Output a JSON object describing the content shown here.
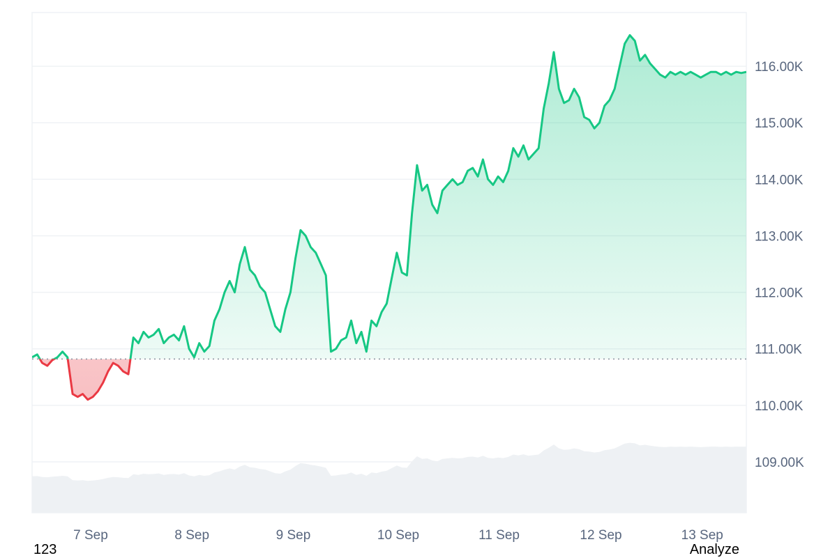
{
  "footer": {
    "left_label": "123",
    "right_label": "Analyze"
  },
  "colors": {
    "up": "#16c784",
    "down": "#ea3943",
    "grid": "#eff2f5",
    "volume": "#eef1f4"
  },
  "chart_data": {
    "type": "area",
    "title": "",
    "xlabel": "",
    "ylabel": "",
    "ylim": [
      108100,
      116950
    ],
    "yticks": [
      109000,
      110000,
      111000,
      112000,
      113000,
      114000,
      115000,
      116000
    ],
    "ytick_labels": [
      "109.00K",
      "110.00K",
      "111.00K",
      "112.00K",
      "113.00K",
      "114.00K",
      "115.00K",
      "116.00K"
    ],
    "xlim": [
      0,
      7.05
    ],
    "xticks": [
      0.6,
      1.6,
      2.6,
      3.6,
      4.6,
      5.6,
      6.6
    ],
    "xtick_labels": [
      "7 Sep",
      "8 Sep",
      "9 Sep",
      "10 Sep",
      "11 Sep",
      "12 Sep",
      "13 Sep"
    ],
    "baseline": 110820,
    "grid": true,
    "legend": "none",
    "series": [
      {
        "x": [
          0,
          0.05,
          0.1,
          0.15,
          0.2,
          0.25,
          0.3,
          0.35,
          0.4,
          0.45,
          0.5,
          0.55,
          0.6,
          0.65,
          0.7,
          0.75,
          0.8,
          0.85,
          0.9,
          0.95,
          1.0,
          1.05,
          1.1,
          1.15,
          1.2,
          1.25,
          1.3,
          1.35,
          1.4,
          1.45,
          1.5,
          1.55,
          1.6,
          1.65,
          1.7,
          1.75,
          1.8,
          1.85,
          1.9,
          1.95,
          2.0,
          2.05,
          2.1,
          2.15,
          2.2,
          2.25,
          2.3,
          2.35,
          2.4,
          2.45,
          2.5,
          2.55,
          2.6,
          2.65,
          2.7,
          2.75,
          2.8,
          2.85,
          2.9,
          2.95,
          3.0,
          3.05,
          3.1,
          3.15,
          3.2,
          3.25,
          3.3,
          3.35,
          3.4,
          3.45,
          3.5,
          3.55,
          3.6,
          3.65,
          3.7,
          3.75,
          3.8,
          3.85,
          3.9,
          3.95,
          4.0,
          4.05,
          4.1,
          4.15,
          4.2,
          4.25,
          4.3,
          4.35,
          4.4,
          4.45,
          4.5,
          4.55,
          4.6,
          4.65,
          4.7,
          4.75,
          4.8,
          4.85,
          4.9,
          4.95,
          5.0,
          5.05,
          5.1,
          5.15,
          5.2,
          5.25,
          5.3,
          5.35,
          5.4,
          5.45,
          5.5,
          5.55,
          5.6,
          5.65,
          5.7,
          5.75,
          5.8,
          5.85,
          5.9,
          5.95,
          6.0,
          6.05,
          6.1,
          6.15,
          6.2,
          6.25,
          6.3,
          6.35,
          6.4,
          6.45,
          6.5,
          6.55,
          6.6,
          6.65,
          6.7,
          6.75,
          6.8,
          6.85,
          6.9,
          6.95,
          7.0,
          7.05
        ],
        "values": [
          110850,
          110900,
          110750,
          110700,
          110800,
          110850,
          110950,
          110850,
          110200,
          110150,
          110200,
          110100,
          110150,
          110250,
          110400,
          110600,
          110750,
          110700,
          110600,
          110550,
          111200,
          111100,
          111300,
          111200,
          111250,
          111350,
          111100,
          111200,
          111250,
          111150,
          111400,
          111000,
          110850,
          111100,
          110950,
          111050,
          111500,
          111700,
          112000,
          112200,
          112000,
          112500,
          112800,
          112400,
          112300,
          112100,
          112000,
          111700,
          111400,
          111300,
          111700,
          112000,
          112600,
          113100,
          113000,
          112800,
          112700,
          112500,
          112300,
          110950,
          111000,
          111150,
          111200,
          111500,
          111100,
          111300,
          110950,
          111500,
          111400,
          111650,
          111800,
          112250,
          112700,
          112350,
          112300,
          113400,
          114250,
          113800,
          113900,
          113550,
          113400,
          113800,
          113900,
          114000,
          113900,
          113950,
          114150,
          114200,
          114050,
          114350,
          114000,
          113900,
          114050,
          113950,
          114150,
          114550,
          114400,
          114600,
          114350,
          114450,
          114550,
          115250,
          115700,
          116250,
          115600,
          115350,
          115400,
          115600,
          115450,
          115100,
          115050,
          114900,
          115000,
          115300,
          115400,
          115600,
          116000,
          116400,
          116550,
          116450,
          116100,
          116200,
          116050,
          115950,
          115850,
          115800,
          115900,
          115850,
          115900,
          115850,
          115900,
          115850,
          115800,
          115850,
          115900,
          115900,
          115850,
          115900,
          115850,
          115900,
          115880,
          115900
        ]
      }
    ]
  }
}
